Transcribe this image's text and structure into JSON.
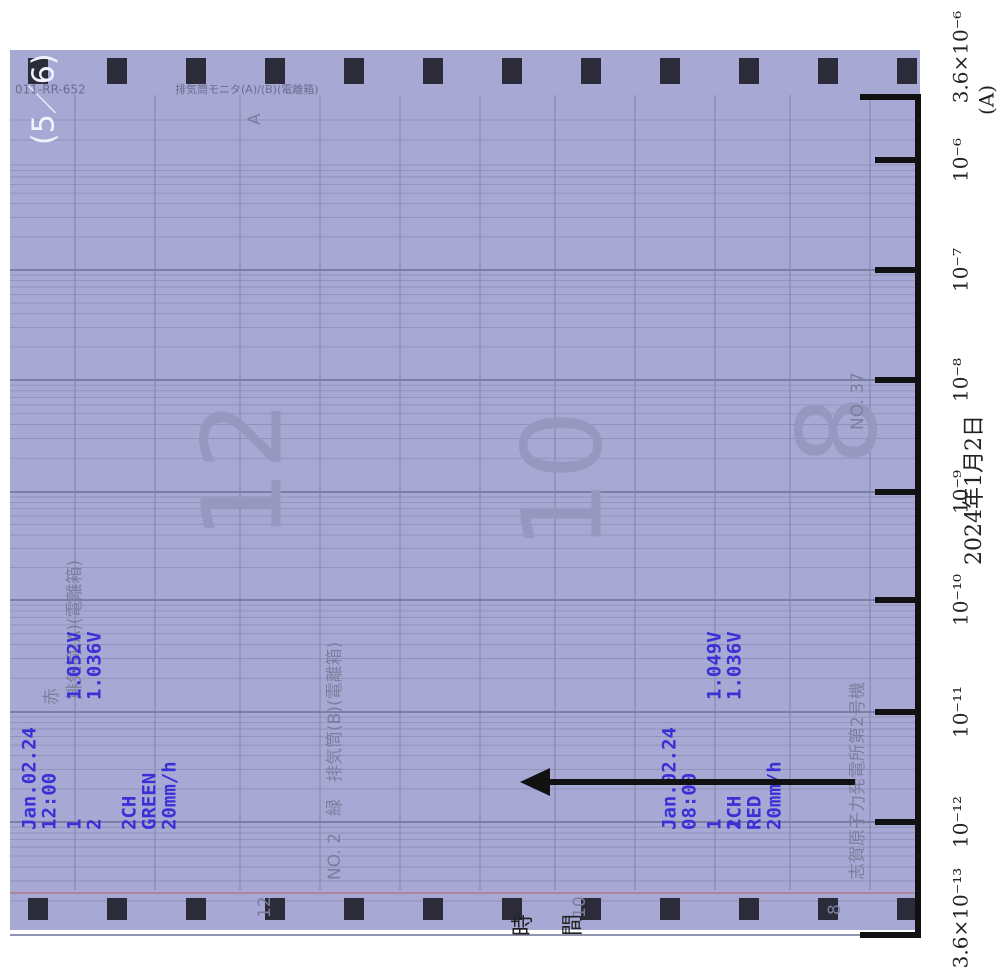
{
  "sheet": {
    "page": "(5／6)",
    "code": "011-RR-652",
    "header": "排気筒モニタ(A)/(B)(電離箱)",
    "unit_mark": "A",
    "channel_a": "排気筒(A)(電離箱)",
    "red": "赤",
    "channel_b": "NO. 2　緑　排気筒(B)(電離箱)",
    "hour_marks": [
      "12",
      "10",
      "8"
    ],
    "stamps": [
      {
        "date": "Jan.02.24",
        "time": "12:00",
        "ch1": "1",
        "v1": "1.052V",
        "ch2": "2",
        "v2": "1.036V",
        "channel": "2CH",
        "color": "GREEN",
        "speed": "20mm/h"
      },
      {
        "date": "Jan.02.24",
        "time": "08:00",
        "ch1": "1",
        "v1": "1.049V",
        "ch2": "2",
        "v2": "1.036V",
        "channel": "1CH",
        "color": "RED",
        "speed": "20mm/h"
      }
    ],
    "plant": "志賀原子力発電所第2号機",
    "number": "NO. 37"
  },
  "scale": {
    "labels": [
      "3.6×10⁻⁶",
      "10⁻⁶",
      "10⁻⁷",
      "10⁻⁸",
      "10⁻⁹",
      "10⁻¹⁰",
      "10⁻¹¹",
      "10⁻¹²",
      "3.6×10⁻¹³"
    ],
    "unit": "(A)"
  },
  "date": "2024年1月2日",
  "time_label": "時間"
}
